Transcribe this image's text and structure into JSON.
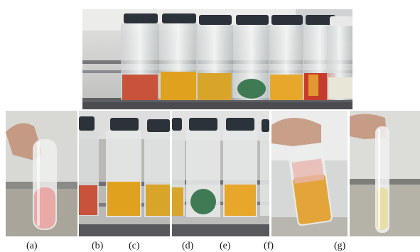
{
  "labels": {
    "a": "(a)",
    "b": "(b)",
    "c": "(c)",
    "d": "(d)",
    "e": "(e)",
    "f": "(f)",
    "g": "(g)"
  },
  "colors": {
    "pink_solution": "#e8a9a7",
    "red_orange_solution": "#c8533a",
    "amber_solution": "#e0a11e",
    "gold_solution": "#d8a52a",
    "green_solution": "#3f7a55",
    "orange_solution": "#e7a72b",
    "red_solution": "#c73b2a",
    "colorless_solution": "#e8e6d6",
    "pale_yellow_solution": "#e6dfa8",
    "cap_dark": "#2c323a",
    "rack_metal": "#6f7074",
    "window_light": "#d9dadc"
  }
}
